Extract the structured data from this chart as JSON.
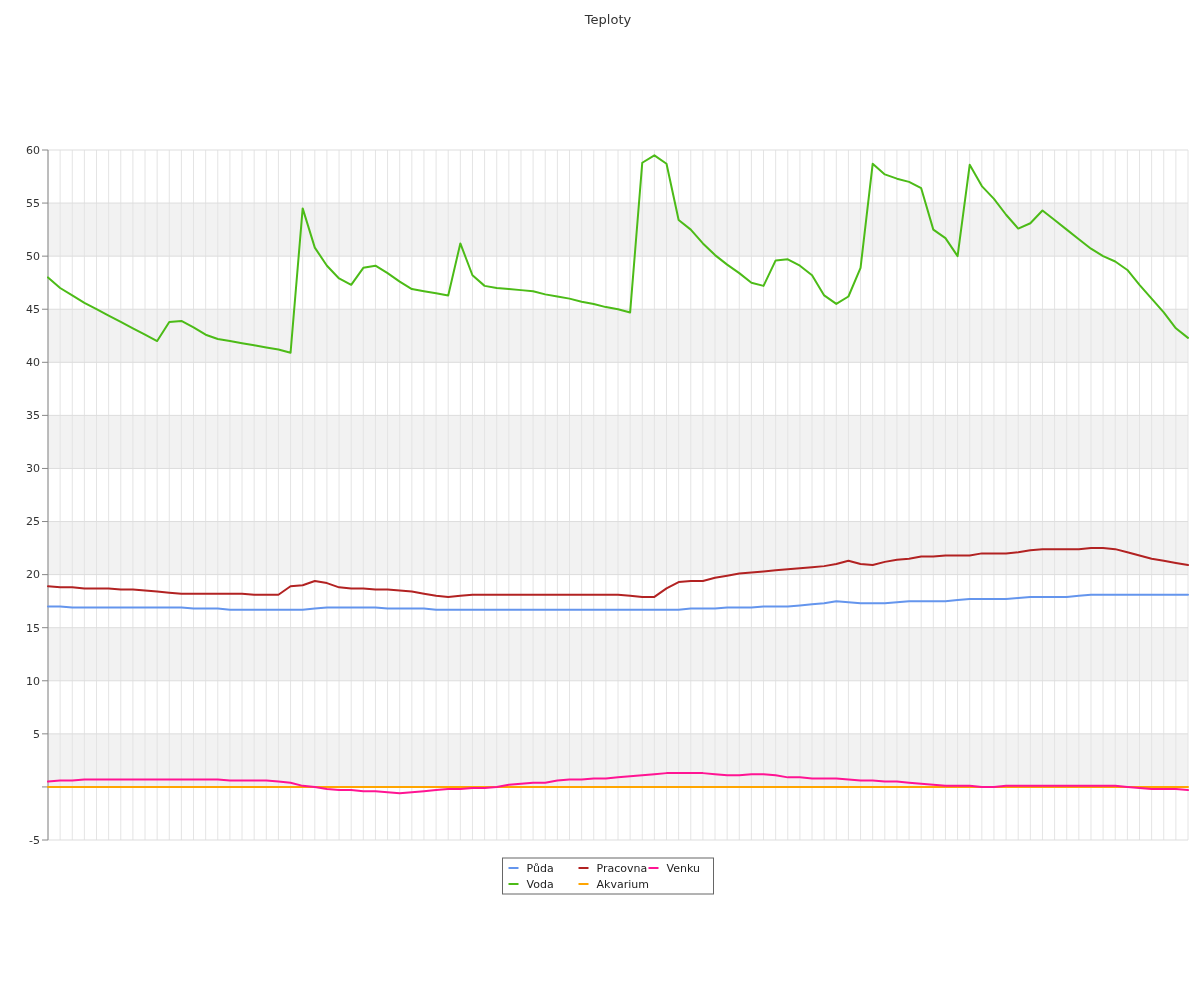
{
  "chart_data": {
    "type": "line",
    "title": "Teploty",
    "categories": [
      null,
      null,
      null,
      null,
      null,
      null,
      null,
      null,
      null,
      null,
      null,
      null,
      null,
      null,
      null,
      null,
      null,
      null,
      null,
      null,
      null,
      null,
      null,
      null,
      null,
      null,
      null,
      null,
      null,
      null,
      null,
      null,
      null,
      null,
      null,
      null,
      null,
      null,
      null,
      null,
      null,
      null,
      null,
      null,
      null,
      null,
      null,
      null,
      null,
      null,
      null,
      null,
      null,
      null,
      null,
      null,
      null,
      null,
      null,
      null,
      null,
      null,
      null,
      null,
      null,
      null,
      null,
      null,
      null,
      null,
      null,
      null,
      null,
      null,
      null,
      null,
      null,
      null,
      null,
      null,
      null,
      null,
      null,
      null,
      null,
      null,
      null,
      null,
      null,
      null,
      null,
      null,
      null,
      null,
      null
    ],
    "ylim": [
      -5,
      60
    ],
    "yticks": [
      {
        "value": -5,
        "label": "-5"
      },
      {
        "value": 0,
        "label": null
      },
      5,
      10,
      15,
      20,
      25,
      30,
      35,
      40,
      45,
      50,
      55,
      60
    ],
    "grid": true,
    "legend": "bottom",
    "tick_labels": "y",
    "series": [
      {
        "name": "Půda",
        "color": "#6495ed",
        "values": [
          17.0,
          17.0,
          16.9,
          16.9,
          16.9,
          16.9,
          16.9,
          16.9,
          16.9,
          16.9,
          16.9,
          16.9,
          16.8,
          16.8,
          16.8,
          16.7,
          16.7,
          16.7,
          16.7,
          16.7,
          16.7,
          16.7,
          16.8,
          16.9,
          16.9,
          16.9,
          16.9,
          16.9,
          16.8,
          16.8,
          16.8,
          16.8,
          16.7,
          16.7,
          16.7,
          16.7,
          16.7,
          16.7,
          16.7,
          16.7,
          16.7,
          16.7,
          16.7,
          16.7,
          16.7,
          16.7,
          16.7,
          16.7,
          16.7,
          16.7,
          16.7,
          16.7,
          16.7,
          16.8,
          16.8,
          16.8,
          16.9,
          16.9,
          16.9,
          17.0,
          17.0,
          17.0,
          17.1,
          17.2,
          17.3,
          17.5,
          17.4,
          17.3,
          17.3,
          17.3,
          17.4,
          17.5,
          17.5,
          17.5,
          17.5,
          17.6,
          17.7,
          17.7,
          17.7,
          17.7,
          17.8,
          17.9,
          17.9,
          17.9,
          17.9,
          18.0,
          18.1,
          18.1,
          18.1,
          18.1,
          18.1,
          18.1,
          18.1,
          18.1,
          18.1
        ]
      },
      {
        "name": "Voda",
        "color": "#4cbb17",
        "values": [
          48.0,
          47.0,
          46.3,
          45.6,
          45.0,
          44.4,
          43.8,
          43.2,
          42.6,
          42.0,
          43.8,
          43.9,
          43.3,
          42.6,
          42.2,
          42.0,
          41.8,
          41.6,
          41.4,
          41.2,
          40.9,
          54.5,
          50.8,
          49.1,
          47.9,
          47.3,
          48.9,
          49.1,
          48.4,
          47.6,
          46.9,
          46.7,
          46.5,
          46.3,
          51.2,
          48.2,
          47.2,
          47.0,
          46.9,
          46.8,
          46.7,
          46.4,
          46.2,
          46.0,
          45.7,
          45.5,
          45.2,
          45.0,
          44.7,
          58.8,
          59.5,
          58.7,
          53.4,
          52.5,
          51.2,
          50.1,
          49.2,
          48.4,
          47.5,
          47.2,
          49.6,
          49.7,
          49.1,
          48.2,
          46.3,
          45.5,
          46.2,
          48.9,
          58.7,
          57.7,
          57.3,
          57.0,
          56.4,
          52.5,
          51.7,
          50.0,
          58.6,
          56.6,
          55.4,
          53.9,
          52.6,
          53.1,
          54.3,
          53.4,
          52.5,
          51.6,
          50.7,
          50.0,
          49.5,
          48.7,
          47.3,
          46.0,
          44.7,
          43.2,
          42.3
        ]
      },
      {
        "name": "Pracovna",
        "color": "#b22222",
        "values": [
          18.9,
          18.8,
          18.8,
          18.7,
          18.7,
          18.7,
          18.6,
          18.6,
          18.5,
          18.4,
          18.3,
          18.2,
          18.2,
          18.2,
          18.2,
          18.2,
          18.2,
          18.1,
          18.1,
          18.1,
          18.9,
          19.0,
          19.4,
          19.2,
          18.8,
          18.7,
          18.7,
          18.6,
          18.6,
          18.5,
          18.4,
          18.2,
          18.0,
          17.9,
          18.0,
          18.1,
          18.1,
          18.1,
          18.1,
          18.1,
          18.1,
          18.1,
          18.1,
          18.1,
          18.1,
          18.1,
          18.1,
          18.1,
          18.0,
          17.9,
          17.9,
          18.7,
          19.3,
          19.4,
          19.4,
          19.7,
          19.9,
          20.1,
          20.2,
          20.3,
          20.4,
          20.5,
          20.6,
          20.7,
          20.8,
          21.0,
          21.3,
          21.0,
          20.9,
          21.2,
          21.4,
          21.5,
          21.7,
          21.7,
          21.8,
          21.8,
          21.8,
          22.0,
          22.0,
          22.0,
          22.1,
          22.3,
          22.4,
          22.4,
          22.4,
          22.4,
          22.5,
          22.5,
          22.4,
          22.1,
          21.8,
          21.5,
          21.3,
          21.1,
          20.9
        ]
      },
      {
        "name": "Akvarium",
        "color": "#ffa500",
        "values": [
          0,
          0,
          0,
          0,
          0,
          0,
          0,
          0,
          0,
          0,
          0,
          0,
          0,
          0,
          0,
          0,
          0,
          0,
          0,
          0,
          0,
          0,
          0,
          0,
          0,
          0,
          0,
          0,
          0,
          0,
          0,
          0,
          0,
          0,
          0,
          0,
          0,
          0,
          0,
          0,
          0,
          0,
          0,
          0,
          0,
          0,
          0,
          0,
          0,
          0,
          0,
          0,
          0,
          0,
          0,
          0,
          0,
          0,
          0,
          0,
          0,
          0,
          0,
          0,
          0,
          0,
          0,
          0,
          0,
          0,
          0,
          0,
          0,
          0,
          0,
          0,
          0,
          0,
          0,
          0,
          0,
          0,
          0,
          0,
          0,
          0,
          0,
          0,
          0,
          0,
          0,
          0,
          0,
          0,
          0
        ]
      },
      {
        "name": "Venku",
        "color": "#ff1493",
        "values": [
          0.5,
          0.6,
          0.6,
          0.7,
          0.7,
          0.7,
          0.7,
          0.7,
          0.7,
          0.7,
          0.7,
          0.7,
          0.7,
          0.7,
          0.7,
          0.6,
          0.6,
          0.6,
          0.6,
          0.5,
          0.4,
          0.1,
          0,
          -0.2,
          -0.3,
          -0.3,
          -0.4,
          -0.4,
          -0.5,
          -0.6,
          -0.5,
          -0.4,
          -0.3,
          -0.2,
          -0.2,
          -0.1,
          -0.1,
          0,
          0.2,
          0.3,
          0.4,
          0.4,
          0.6,
          0.7,
          0.7,
          0.8,
          0.8,
          0.9,
          1.0,
          1.1,
          1.2,
          1.3,
          1.3,
          1.3,
          1.3,
          1.2,
          1.1,
          1.1,
          1.2,
          1.2,
          1.1,
          0.9,
          0.9,
          0.8,
          0.8,
          0.8,
          0.7,
          0.6,
          0.6,
          0.5,
          0.5,
          0.4,
          0.3,
          0.2,
          0.1,
          0.1,
          0.1,
          0,
          0,
          0.1,
          0.1,
          0.1,
          0.1,
          0.1,
          0.1,
          0.1,
          0.1,
          0.1,
          0.1,
          0,
          -0.1,
          -0.2,
          -0.2,
          -0.2,
          -0.3
        ]
      }
    ]
  }
}
